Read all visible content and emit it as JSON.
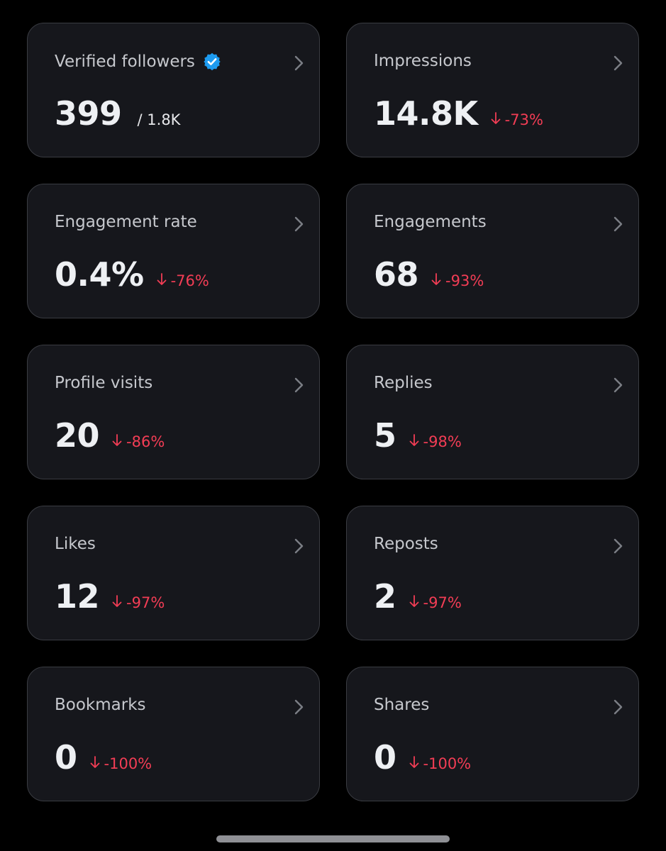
{
  "colors": {
    "background": "#000000",
    "card": "#16171c",
    "card_border": "#3a3c42",
    "title": "#c6c8cd",
    "value": "#eef0f3",
    "negative": "#f23d55",
    "verified": "#1d9bf0"
  },
  "icons": {
    "verified": "verified-badge-icon",
    "chevron": "chevron-right-icon",
    "arrow": "arrow-down-icon"
  },
  "cards": [
    {
      "title": "Verified followers",
      "value": "399",
      "suffix": "/ 1.8K",
      "change": "",
      "verified": true
    },
    {
      "title": "Impressions",
      "value": "14.8K",
      "suffix": "",
      "change": "-73%"
    },
    {
      "title": "Engagement rate",
      "value": "0.4%",
      "suffix": "",
      "change": "-76%"
    },
    {
      "title": "Engagements",
      "value": "68",
      "suffix": "",
      "change": "-93%"
    },
    {
      "title": "Profile visits",
      "value": "20",
      "suffix": "",
      "change": "-86%"
    },
    {
      "title": "Replies",
      "value": "5",
      "suffix": "",
      "change": "-98%"
    },
    {
      "title": "Likes",
      "value": "12",
      "suffix": "",
      "change": "-97%"
    },
    {
      "title": "Reposts",
      "value": "2",
      "suffix": "",
      "change": "-97%"
    },
    {
      "title": "Bookmarks",
      "value": "0",
      "suffix": "",
      "change": "-100%"
    },
    {
      "title": "Shares",
      "value": "0",
      "suffix": "",
      "change": "-100%"
    }
  ]
}
